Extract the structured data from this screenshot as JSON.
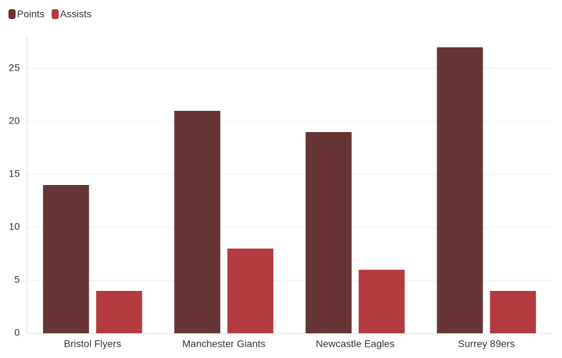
{
  "chart_data": {
    "type": "grouped-bar",
    "categories": [
      "Bristol Flyers",
      "Manchester Giants",
      "Newcastle Eagles",
      "Surrey 89ers"
    ],
    "series": [
      {
        "name": "Points",
        "color": "#673535",
        "values": [
          14,
          21,
          19,
          27
        ]
      },
      {
        "name": "Assists",
        "color": "#b33b3f",
        "values": [
          4,
          8,
          6,
          4
        ]
      }
    ],
    "ylim": [
      0,
      28
    ],
    "yticks": [
      0,
      5,
      10,
      15,
      20,
      25
    ],
    "grid": true,
    "legend": "top-left"
  }
}
